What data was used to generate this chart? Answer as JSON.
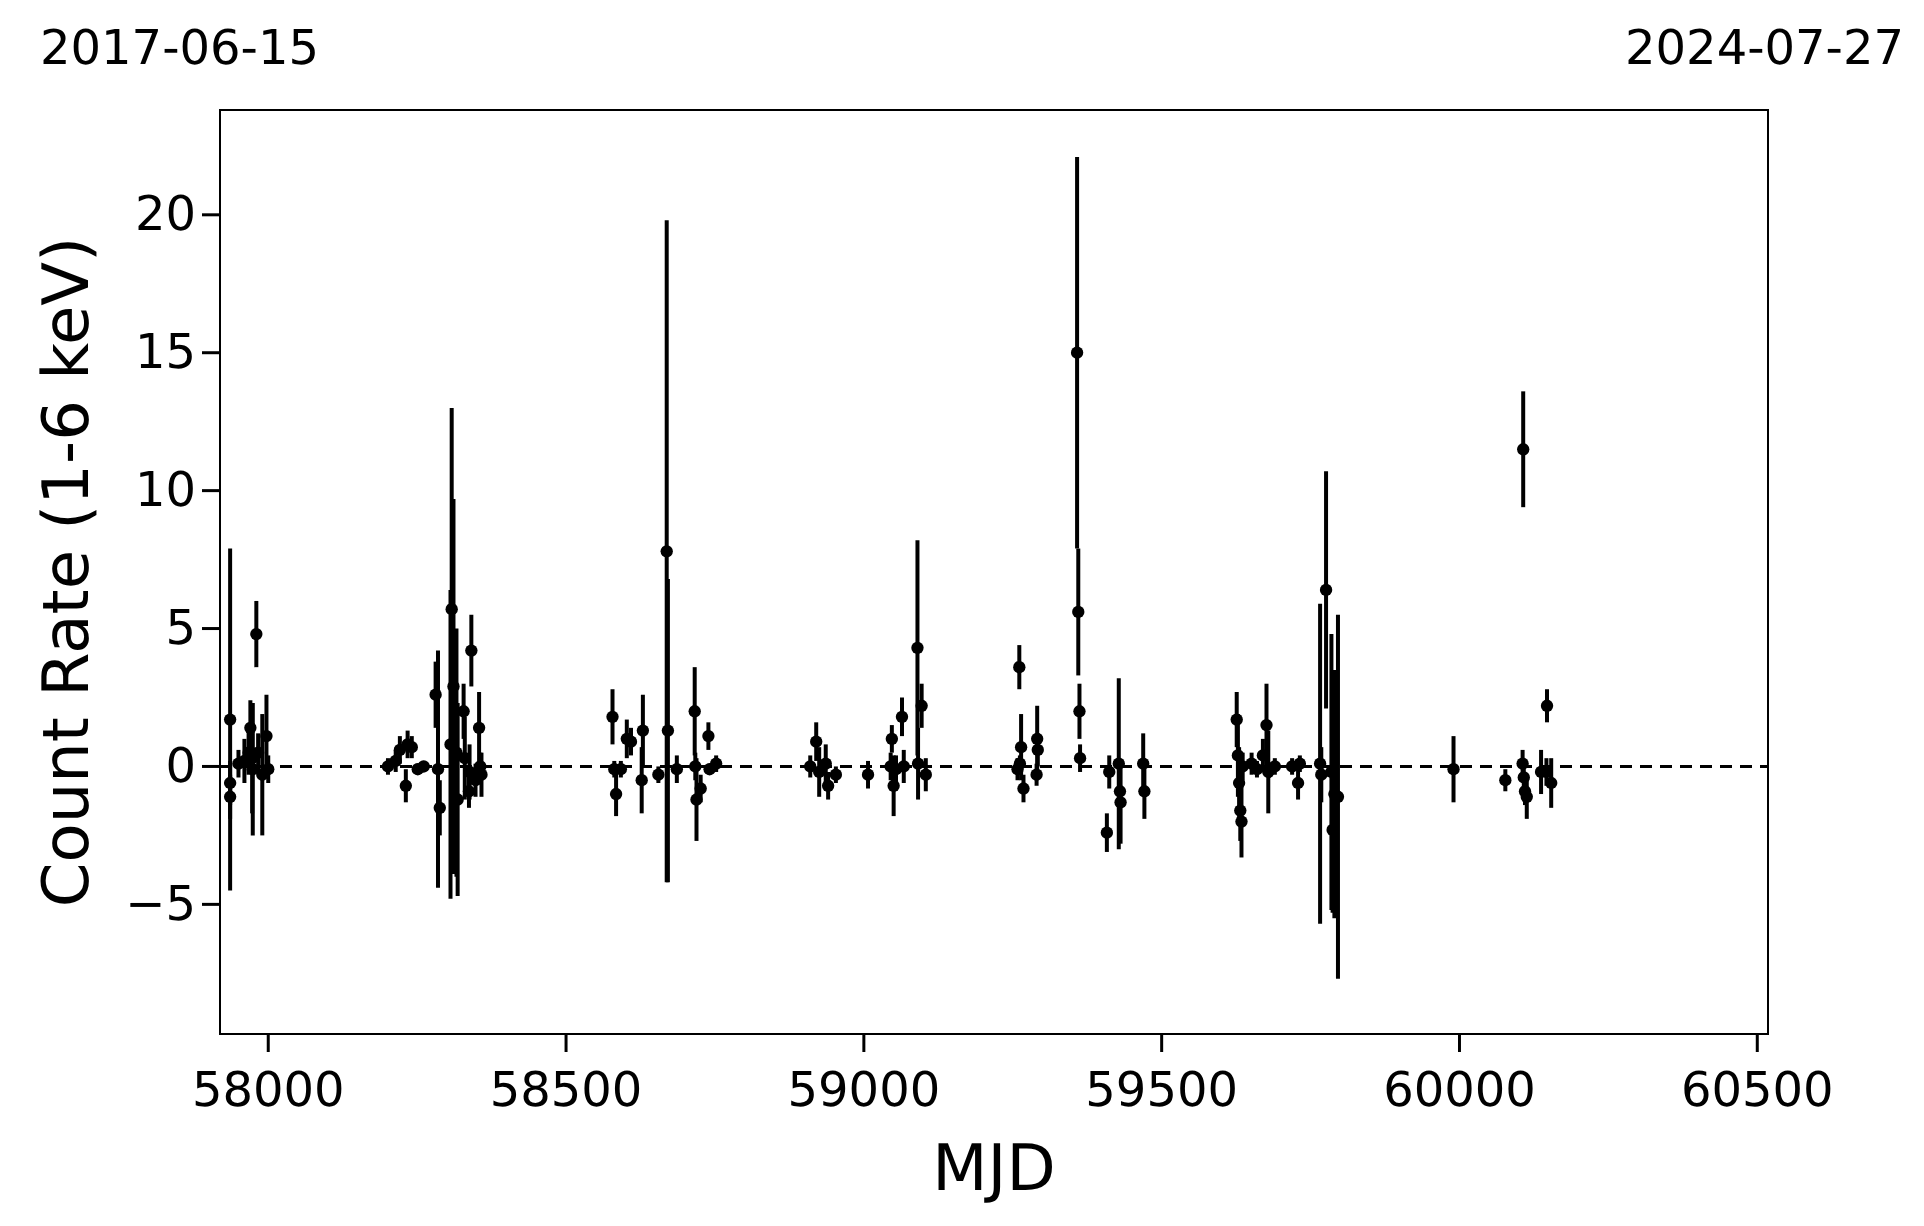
{
  "chart_data": {
    "type": "scatter",
    "xlabel": "MJD",
    "ylabel": "Count Rate (1-6 keV)",
    "annotations": [
      "2017-06-15",
      "2024-07-27"
    ],
    "xlim": [
      57919,
      60518
    ],
    "ylim": [
      -9.7,
      23.8
    ],
    "xticks": [
      58000,
      58500,
      59000,
      59500,
      60000,
      60500
    ],
    "yticks": [
      -5,
      0,
      5,
      10,
      15,
      20
    ],
    "grid": false,
    "marker": "circle",
    "ref_lines": [
      {
        "axis": "y",
        "value": 0,
        "line_style": "dashed",
        "color": "#000000"
      }
    ],
    "series": [
      {
        "color": "#000000",
        "x": [
          57936,
          57936,
          57936,
          57950,
          57960,
          57967,
          57970,
          57973,
          57974,
          57980,
          57983,
          57990,
          57997,
          58000,
          58201,
          58214,
          58221,
          58231,
          58234,
          58241,
          58251,
          58261,
          58281,
          58285,
          58288,
          58306,
          58308,
          58311,
          58316,
          58318,
          58328,
          58330,
          58337,
          58338,
          58341,
          58348,
          58354,
          58356,
          58358,
          58578,
          58581,
          58584,
          58592,
          58602,
          58609,
          58627,
          58629,
          58655,
          58669,
          58671,
          58686,
          58716,
          58717,
          58719,
          58726,
          58739,
          58741,
          58752,
          58910,
          58920,
          58925,
          58936,
          58940,
          58953,
          59007,
          59045,
          59047,
          59050,
          59054,
          59064,
          59067,
          59090,
          59091,
          59097,
          59104,
          59258,
          59261,
          59262,
          59264,
          59268,
          59290,
          59291,
          59292,
          59358,
          59360,
          59362,
          59363,
          59408,
          59412,
          59428,
          59430,
          59431,
          59469,
          59471,
          59626,
          59628,
          59630,
          59632,
          59634,
          59636,
          59651,
          59660,
          59670,
          59676,
          59679,
          59690,
          59719,
          59729,
          59732,
          59766,
          59768,
          59776,
          59785,
          59787,
          59790,
          59796,
          59990,
          60077,
          60106,
          60107,
          60108,
          60110,
          60113,
          60137,
          60146,
          60147,
          60154
        ],
        "values": [
          1.7,
          -0.6,
          -1.1,
          0.1,
          0.2,
          0.5,
          1.4,
          0.3,
          -0.1,
          4.8,
          0.5,
          -0.3,
          1.1,
          -0.1,
          0,
          0.2,
          0.6,
          -0.7,
          0.8,
          0.7,
          -0.1,
          0,
          2.6,
          -0.1,
          -1.5,
          0.8,
          5.7,
          2.9,
          0.5,
          -1.2,
          2.0,
          0.3,
          -0.9,
          -0.2,
          4.2,
          -0.5,
          1.4,
          0,
          -0.3,
          1.8,
          -0.1,
          -1.0,
          -0.1,
          1.0,
          0.9,
          -0.5,
          1.3,
          -0.3,
          7.8,
          1.3,
          -0.1,
          2.0,
          0,
          -1.2,
          -0.8,
          1.1,
          -0.1,
          0.1,
          0,
          0.9,
          -0.2,
          0.1,
          -0.7,
          -0.3,
          -0.3,
          0,
          1.0,
          -0.7,
          -0.1,
          1.8,
          0,
          4.3,
          0.1,
          2.2,
          -0.3,
          -0.1,
          3.6,
          0.1,
          0.7,
          -0.8,
          -0.3,
          1.0,
          0.6,
          15.0,
          5.6,
          2.0,
          0.3,
          -2.4,
          -0.2,
          0.1,
          -0.9,
          -1.3,
          0.1,
          -0.9,
          1.7,
          0.4,
          -0.6,
          -1.6,
          -2.0,
          0,
          0.1,
          -0.1,
          0.4,
          1.5,
          -0.2,
          0,
          0,
          -0.6,
          0.1,
          0.1,
          -0.3,
          6.4,
          -0.2,
          -2.3,
          -1.0,
          -1.1,
          -0.1,
          -0.5,
          0.1,
          11.5,
          -0.4,
          -0.9,
          -1.1,
          -0.2,
          -0.2,
          2.2,
          -0.6
        ],
        "errors": [
          6.2,
          0.8,
          0.8,
          0.5,
          0.8,
          0.8,
          1,
          2,
          2.4,
          1.2,
          0.7,
          2.2,
          1.5,
          0.5,
          0.3,
          0.4,
          0.5,
          0.6,
          0.5,
          0.4,
          0.2,
          0.2,
          1.2,
          4.3,
          1,
          5.6,
          7.3,
          6.8,
          4.5,
          3.5,
          1,
          1.5,
          0.6,
          1,
          1.3,
          0.6,
          1.3,
          0.5,
          0.8,
          1,
          0.3,
          0.8,
          0.3,
          0.7,
          0.5,
          1.2,
          1.3,
          0.3,
          12,
          5.5,
          0.5,
          1.6,
          0.5,
          1.5,
          0.5,
          0.5,
          0.2,
          0.3,
          0.4,
          0.7,
          0.9,
          0.7,
          0.5,
          0.3,
          0.5,
          0.5,
          0.5,
          1.1,
          0.5,
          0.7,
          0.6,
          3.9,
          1.3,
          0.8,
          0.6,
          0.4,
          0.8,
          0.3,
          1.2,
          0.5,
          0.4,
          1.2,
          0.6,
          7.1,
          2.3,
          1,
          0.5,
          0.7,
          0.6,
          3.1,
          1,
          1.5,
          1.1,
          1,
          1,
          1.5,
          1.3,
          1.1,
          1.3,
          0.5,
          0.4,
          0.3,
          0.6,
          1.5,
          1.5,
          0.3,
          0.3,
          0.6,
          0.3,
          5.8,
          1,
          4.3,
          5,
          3,
          4.5,
          6.6,
          1.2,
          0.4,
          0.5,
          2.1,
          0.5,
          0.5,
          0.8,
          0.8,
          0.5,
          0.6,
          0.9
        ]
      }
    ]
  }
}
